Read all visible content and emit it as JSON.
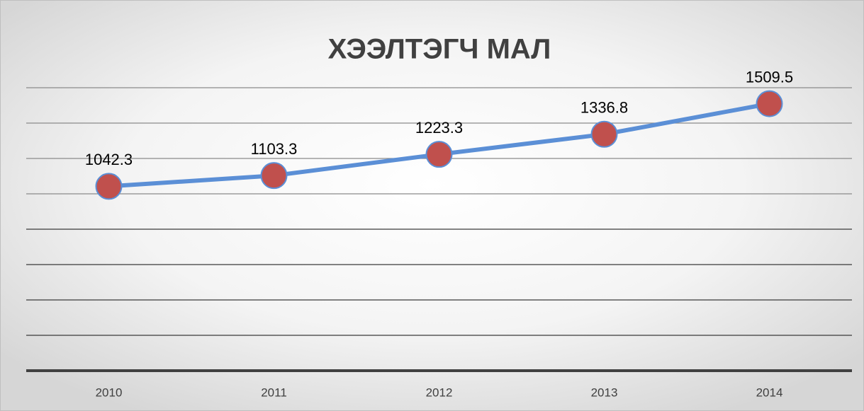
{
  "chart_data": {
    "type": "line",
    "title": "ХЭЭЛТЭГЧ МАЛ",
    "categories": [
      "2010",
      "2011",
      "2012",
      "2013",
      "2014"
    ],
    "series": [
      {
        "name": "ХЭЭЛТЭГЧ МАЛ",
        "color": "#5b8fd6",
        "marker_color": "#c0504d",
        "values": [
          1042.3,
          1103.3,
          1223.3,
          1336.8,
          1509.5
        ]
      }
    ],
    "ylim": [
      0,
      1600
    ],
    "yticks": [
      0,
      200,
      400,
      600,
      800,
      1000,
      1200,
      1400,
      1600
    ],
    "grid": true
  }
}
